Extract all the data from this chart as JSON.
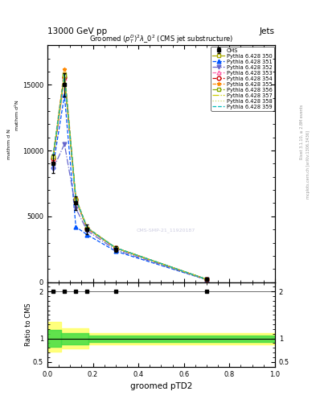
{
  "title_top": "13000 GeV pp",
  "title_right": "Jets",
  "plot_title": "Groomed $(p_T^D)^2\\lambda\\_0^2$ (CMS jet substructure)",
  "xlabel": "groomed pTD2",
  "ylabel_ratio": "Ratio to CMS",
  "x_vals": [
    0.025,
    0.075,
    0.125,
    0.175,
    0.3,
    0.7
  ],
  "cms_y": [
    9000,
    15000,
    6000,
    4000,
    2500,
    200
  ],
  "cms_errors": [
    700,
    900,
    500,
    350,
    200,
    50
  ],
  "pythia_data": {
    "350": {
      "y": [
        9500,
        15800,
        6300,
        4100,
        2600,
        210
      ],
      "color": "#aaaa00",
      "ls": "-",
      "marker": "s",
      "filled": false
    },
    "351": {
      "y": [
        8800,
        14200,
        4200,
        3600,
        2350,
        180
      ],
      "color": "#0055ff",
      "ls": "--",
      "marker": "^",
      "filled": true
    },
    "352": {
      "y": [
        8600,
        10500,
        5600,
        3900,
        2450,
        190
      ],
      "color": "#6666cc",
      "ls": "-.",
      "marker": "v",
      "filled": true
    },
    "353": {
      "y": [
        9300,
        15500,
        6200,
        4050,
        2580,
        205
      ],
      "color": "#ff66aa",
      "ls": "--",
      "marker": "^",
      "filled": false
    },
    "354": {
      "y": [
        9400,
        15600,
        6250,
        4070,
        2590,
        207
      ],
      "color": "#cc0000",
      "ls": "--",
      "marker": "o",
      "filled": false
    },
    "355": {
      "y": [
        9600,
        16200,
        6400,
        4150,
        2620,
        215
      ],
      "color": "#ff8800",
      "ls": "--",
      "marker": "*",
      "filled": true
    },
    "356": {
      "y": [
        9500,
        15700,
        6300,
        4100,
        2600,
        210
      ],
      "color": "#88aa00",
      "ls": "-.",
      "marker": "s",
      "filled": false
    },
    "357": {
      "y": [
        9450,
        15650,
        6280,
        4090,
        2595,
        209
      ],
      "color": "#cccc00",
      "ls": "-.",
      "marker": "",
      "filled": false
    },
    "358": {
      "y": [
        9550,
        15750,
        6320,
        4110,
        2605,
        211
      ],
      "color": "#ccdd66",
      "ls": ":",
      "marker": "",
      "filled": false
    },
    "359": {
      "y": [
        9600,
        15800,
        6350,
        4120,
        2610,
        212
      ],
      "color": "#00bbbb",
      "ls": "--",
      "marker": "",
      "filled": false
    }
  },
  "ratio_band_yellow_x0": {
    "xmin": 0.0,
    "xmax": 0.06,
    "low": 0.72,
    "high": 1.35
  },
  "ratio_band_green_x0": {
    "xmin": 0.0,
    "xmax": 0.06,
    "low": 0.82,
    "high": 1.18
  },
  "ratio_band_yellow_x1": {
    "xmin": 0.06,
    "xmax": 0.18,
    "low": 0.78,
    "high": 1.22
  },
  "ratio_band_green_x1": {
    "xmin": 0.06,
    "xmax": 0.18,
    "low": 0.88,
    "high": 1.12
  },
  "ratio_band_yellow_main": {
    "xmin": 0.18,
    "xmax": 1.0,
    "low": 0.88,
    "high": 1.12
  },
  "ratio_band_green_main": {
    "xmin": 0.18,
    "xmax": 1.0,
    "low": 0.93,
    "high": 1.07
  },
  "ylim_main": [
    0,
    18000
  ],
  "ylim_ratio": [
    0.4,
    2.2
  ],
  "xlim": [
    0.0,
    1.0
  ],
  "yticks_main": [
    0,
    5000,
    10000,
    15000
  ],
  "ytick_labels_main": [
    "0",
    "5000",
    "10000",
    "15000"
  ]
}
